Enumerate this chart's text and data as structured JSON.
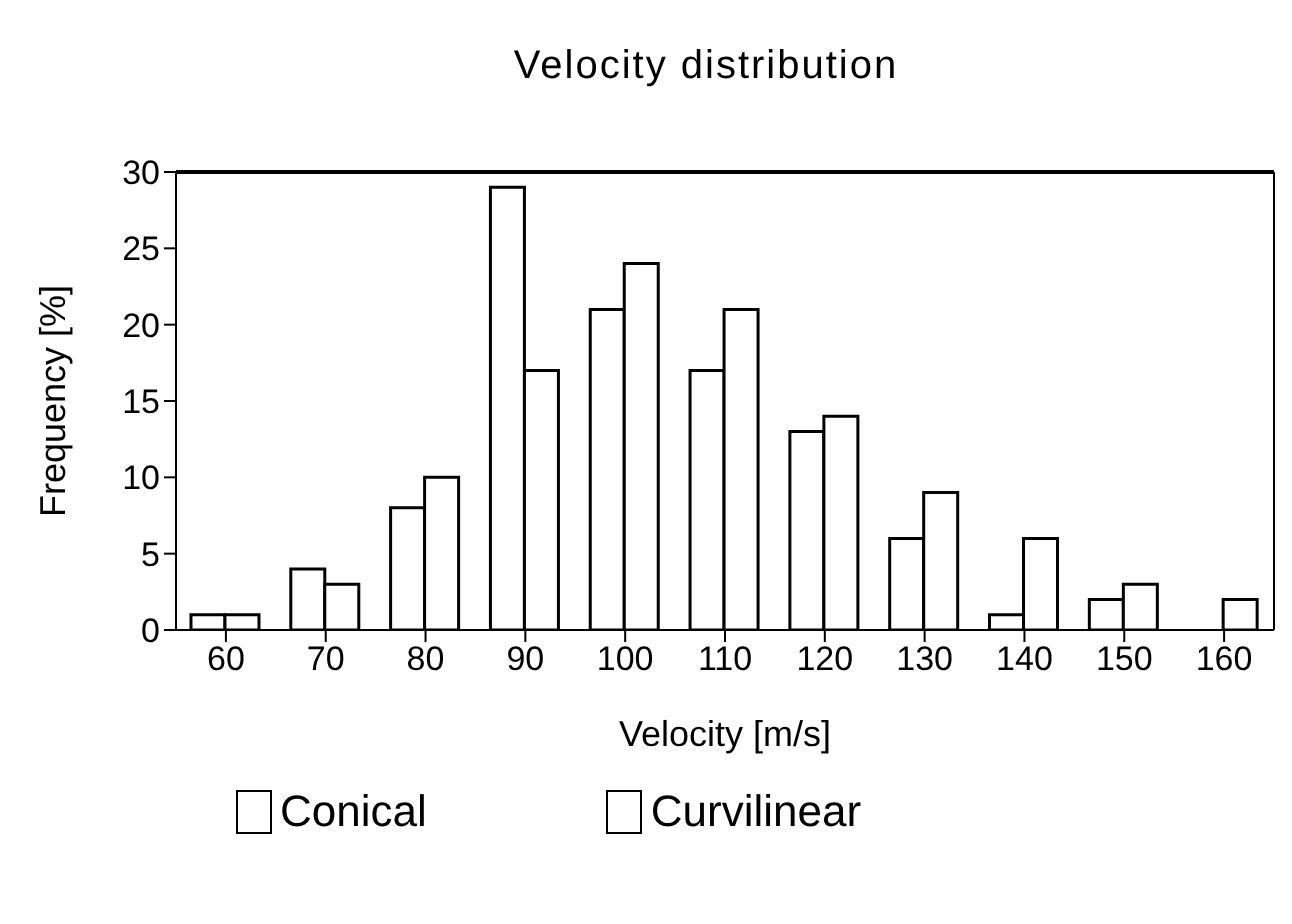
{
  "chart_data": {
    "type": "bar",
    "title": "Velocity distribution",
    "xlabel": "Velocity [m/s]",
    "ylabel": "Frequency [%]",
    "categories": [
      "60",
      "70",
      "80",
      "90",
      "100",
      "110",
      "120",
      "130",
      "140",
      "150",
      "160"
    ],
    "series": [
      {
        "name": "Conical",
        "color": "#ffffff",
        "values": [
          1,
          4,
          8,
          29,
          21,
          17,
          13,
          6,
          1,
          2,
          0
        ]
      },
      {
        "name": "Curvilinear",
        "color": "#ffffff",
        "values": [
          1,
          3,
          10,
          17,
          24,
          21,
          14,
          9,
          6,
          3,
          2
        ]
      }
    ],
    "ylim": [
      0,
      30
    ],
    "yticks": [
      0,
      5,
      10,
      15,
      20,
      25,
      30
    ],
    "legend": "bottom"
  }
}
